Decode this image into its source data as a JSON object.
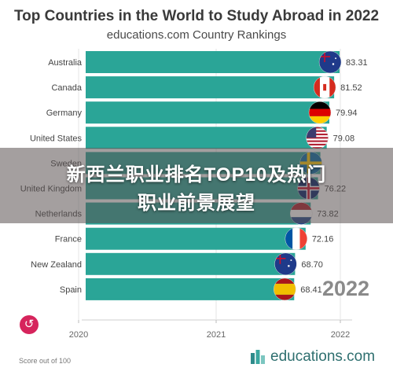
{
  "title": "Top Countries in the World to Study Abroad in 2022",
  "subtitle": "educations.com Country Rankings",
  "banner": {
    "line1": "新西兰职业排名TOP10及热门",
    "line2": "职业前景展望"
  },
  "year_label": "2022",
  "score_note": "Score out of 100",
  "logo_text": "educations.com",
  "colors": {
    "bar": "#2aa597",
    "banner": "#5a5050",
    "replay": "#d6245c"
  },
  "chart_data": {
    "type": "bar",
    "orientation": "horizontal",
    "title": "Top Countries in the World to Study Abroad in 2022",
    "subtitle": "educations.com Country Rankings",
    "categories": [
      "Australia",
      "Canada",
      "Germany",
      "United States",
      "Sweden",
      "United Kingdom",
      "Netherlands",
      "France",
      "New Zealand",
      "Spain"
    ],
    "values": [
      83.31,
      81.52,
      79.94,
      79.08,
      77.0,
      76.22,
      73.82,
      72.16,
      68.7,
      68.41
    ],
    "value_labels": [
      "83.31",
      "81.52",
      "79.94",
      "79.08",
      "",
      "76.22",
      "73.82",
      "72.16",
      "68.70",
      "68.41"
    ],
    "flags": [
      "australia-flag",
      "canada-flag",
      "germany-flag",
      "united-states-flag",
      "sweden-flag",
      "united-kingdom-flag",
      "netherlands-flag",
      "france-flag",
      "new-zealand-flag",
      "spain-flag"
    ],
    "x_axis": {
      "ticks": [
        "2020",
        "2021",
        "2022"
      ]
    },
    "xlim": [
      0,
      90
    ],
    "grid": true,
    "legend": "none"
  }
}
